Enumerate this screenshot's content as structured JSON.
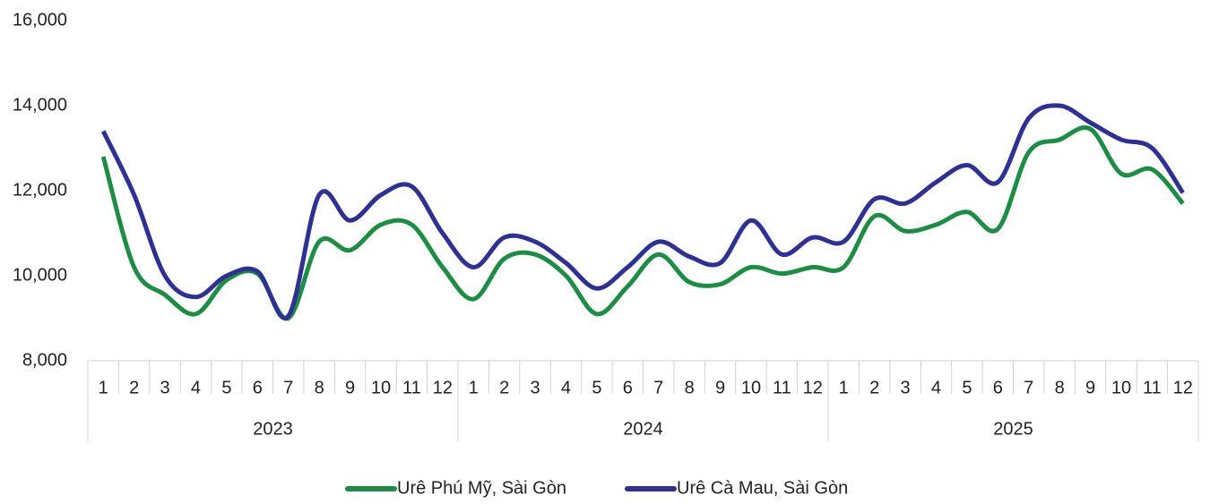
{
  "chart_data": {
    "type": "line",
    "categories": [
      "1",
      "2",
      "3",
      "4",
      "5",
      "6",
      "7",
      "8",
      "9",
      "10",
      "11",
      "12",
      "1",
      "2",
      "3",
      "4",
      "5",
      "6",
      "7",
      "8",
      "9",
      "10",
      "11",
      "12",
      "1",
      "2",
      "3",
      "4",
      "5",
      "6",
      "7",
      "8",
      "9",
      "10",
      "11",
      "12"
    ],
    "groups": [
      "2023",
      "2024",
      "2025"
    ],
    "series": [
      {
        "name": "Urê Phú Mỹ, Sài Gòn",
        "color": "#1e8c45",
        "values": [
          12800,
          10200,
          9550,
          9100,
          9900,
          10050,
          9000,
          10800,
          10600,
          11200,
          11200,
          10200,
          9450,
          10400,
          10500,
          10000,
          9100,
          9750,
          10500,
          9850,
          9800,
          10200,
          10050,
          10200,
          10200,
          11400,
          11050,
          11200,
          11500,
          11100,
          12900,
          13200,
          13450,
          12400,
          12500,
          11700
        ]
      },
      {
        "name": "Urê Cà Mau, Sài Gòn",
        "color": "#2e3192",
        "values": [
          13400,
          11900,
          10000,
          9500,
          10000,
          10100,
          9050,
          11900,
          11300,
          11900,
          12100,
          11000,
          10200,
          10900,
          10800,
          10300,
          9700,
          10200,
          10800,
          10450,
          10300,
          11300,
          10500,
          10900,
          10800,
          11800,
          11700,
          12200,
          12600,
          12200,
          13700,
          14000,
          13600,
          13200,
          13000,
          11950
        ]
      }
    ],
    "ylim": [
      8000,
      16000
    ],
    "yticks": [
      {
        "value": 8000,
        "label": "8,000"
      },
      {
        "value": 10000,
        "label": "10,000"
      },
      {
        "value": 12000,
        "label": "12,000"
      },
      {
        "value": 14000,
        "label": "14,000"
      },
      {
        "value": 16000,
        "label": "16,000"
      }
    ],
    "grid": false,
    "legend": "bottom"
  }
}
